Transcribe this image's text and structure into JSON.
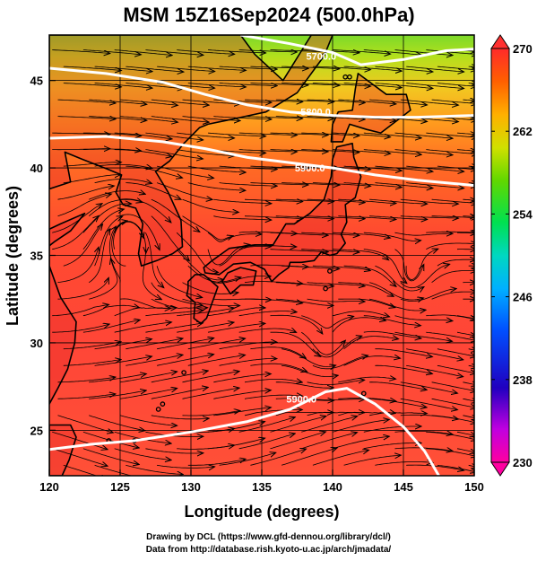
{
  "chart_data": {
    "type": "contour-streamline-map",
    "title": "MSM 15Z16Sep2024 (500.0hPa)",
    "xlabel": "Longitude (degrees)",
    "ylabel": "Latitude  (degrees)",
    "xlim": [
      120,
      150
    ],
    "ylim": [
      22.4,
      47.6
    ],
    "x_ticks": [
      120,
      125,
      130,
      135,
      140,
      145,
      150
    ],
    "y_ticks": [
      25,
      30,
      35,
      40,
      45
    ],
    "grid": true,
    "colorbar": {
      "min": 230,
      "max": 270,
      "labels": [
        270,
        262,
        254,
        246,
        238,
        230
      ],
      "colors": [
        "#ff0090",
        "#c000d0",
        "#3000d0",
        "#0040ff",
        "#00a0ff",
        "#00d0d0",
        "#00e050",
        "#30d000",
        "#a0e000",
        "#ffe000",
        "#ffa000",
        "#ff6000",
        "#ff3030"
      ],
      "extend": "both"
    },
    "contours": [
      {
        "label": "5700.0",
        "points": [
          [
            133.5,
            47.6
          ],
          [
            137,
            47.1
          ],
          [
            140,
            46.6
          ],
          [
            142,
            45.9
          ],
          [
            145,
            46.2
          ],
          [
            148,
            46.7
          ],
          [
            150,
            46.8
          ]
        ]
      },
      {
        "label": "5800.0",
        "points": [
          [
            120,
            45.7
          ],
          [
            124,
            45.4
          ],
          [
            128,
            44.9
          ],
          [
            131,
            44.2
          ],
          [
            134,
            43.6
          ],
          [
            137,
            43.2
          ],
          [
            140,
            43.0
          ],
          [
            143,
            42.9
          ],
          [
            146,
            42.9
          ],
          [
            150,
            43.0
          ]
        ]
      },
      {
        "label": "5900.0",
        "points": [
          [
            120,
            41.7
          ],
          [
            124,
            41.8
          ],
          [
            128,
            41.5
          ],
          [
            131,
            41.1
          ],
          [
            134,
            40.6
          ],
          [
            137,
            40.3
          ],
          [
            140,
            40.0
          ],
          [
            143,
            39.6
          ],
          [
            146,
            39.3
          ],
          [
            150,
            39.0
          ]
        ]
      },
      {
        "label": "5900.0",
        "points": [
          [
            120,
            23.9
          ],
          [
            123,
            24.2
          ],
          [
            126,
            24.4
          ],
          [
            130,
            24.9
          ],
          [
            134,
            25.5
          ],
          [
            137,
            26.2
          ],
          [
            139.5,
            27.2
          ],
          [
            141,
            27.4
          ],
          [
            143,
            26.5
          ],
          [
            145,
            25.2
          ],
          [
            146.5,
            23.8
          ],
          [
            147.5,
            22.4
          ]
        ]
      }
    ],
    "contour_label_positions": [
      [
        139.2,
        46.4
      ],
      [
        138.8,
        43.2
      ],
      [
        138.4,
        40.0
      ],
      [
        137.8,
        26.8
      ]
    ],
    "shading_note_values": {
      "north": 256,
      "mid": 264,
      "south": 268
    }
  },
  "credits": {
    "line1": "Drawing by DCL (https://www.gfd-dennou.org/library/dcl/)",
    "line2": "Data from http://database.rish.kyoto-u.ac.jp/arch/jmadata/"
  }
}
